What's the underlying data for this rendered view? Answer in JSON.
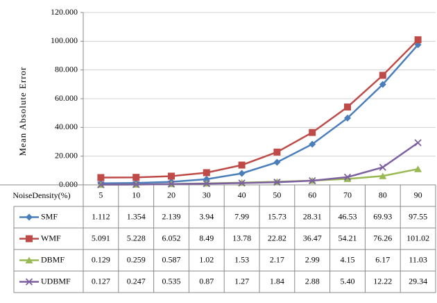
{
  "chart_data": {
    "type": "line",
    "x_label": "NoiseDensity(%)",
    "y_label": "Mean Absolute Error",
    "categories": [
      "5",
      "10",
      "20",
      "30",
      "40",
      "50",
      "60",
      "70",
      "80",
      "90"
    ],
    "ylim": [
      0,
      120
    ],
    "yticks": [
      {
        "value": 0,
        "label": "0.000"
      },
      {
        "value": 20,
        "label": "20.000"
      },
      {
        "value": 40,
        "label": "40.000"
      },
      {
        "value": 60,
        "label": "60.000"
      },
      {
        "value": 80,
        "label": "80.000"
      },
      {
        "value": 100,
        "label": "100.000"
      },
      {
        "value": 120,
        "label": "120.000"
      }
    ],
    "grid": true,
    "series": [
      {
        "name": "SMF",
        "color": "#4a7ebb",
        "values": [
          1.112,
          1.354,
          2.139,
          3.94,
          7.99,
          15.73,
          28.31,
          46.53,
          69.93,
          97.55
        ],
        "value_labels": [
          "1.112",
          "1.354",
          "2.139",
          "3.94",
          "7.99",
          "15.73",
          "28.31",
          "46.53",
          "69.93",
          "97.55"
        ]
      },
      {
        "name": "WMF",
        "color": "#be4b48",
        "values": [
          5.091,
          5.228,
          6.052,
          8.49,
          13.78,
          22.82,
          36.47,
          54.21,
          76.26,
          101.02
        ],
        "value_labels": [
          "5.091",
          "5.228",
          "6.052",
          "8.49",
          "13.78",
          "22.82",
          "36.47",
          "54.21",
          "76.26",
          "101.02"
        ]
      },
      {
        "name": "DBMF",
        "color": "#98b954",
        "values": [
          0.129,
          0.259,
          0.587,
          1.02,
          1.53,
          2.17,
          2.99,
          4.15,
          6.17,
          11.03
        ],
        "value_labels": [
          "0.129",
          "0.259",
          "0.587",
          "1.02",
          "1.53",
          "2.17",
          "2.99",
          "4.15",
          "6.17",
          "11.03"
        ]
      },
      {
        "name": "UDBMF",
        "color": "#7d60a0",
        "values": [
          0.127,
          0.247,
          0.535,
          0.87,
          1.27,
          1.84,
          2.88,
          5.4,
          12.22,
          29.34
        ],
        "value_labels": [
          "0.127",
          "0.247",
          "0.535",
          "0.87",
          "1.27",
          "1.84",
          "2.88",
          "5.40",
          "12.22",
          "29.34"
        ]
      }
    ]
  }
}
